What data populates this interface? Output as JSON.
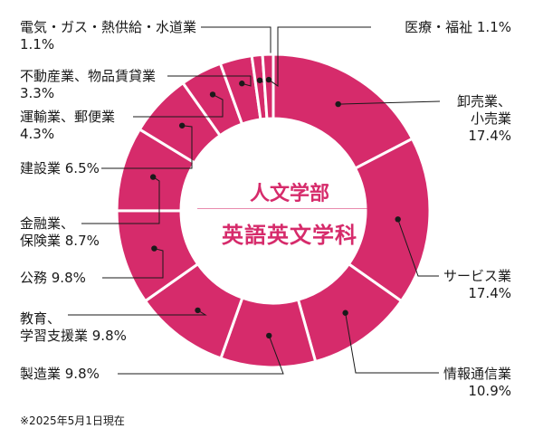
{
  "chart_data": {
    "type": "donut",
    "center_title_line1": "人文学部",
    "center_title_line2": "英語英文学科",
    "footnote": "※2025年5月1日現在",
    "color": "#d62b6b",
    "slices": [
      {
        "id": "s0",
        "lines": [
          "卸売業、",
          "小売業",
          "17.4%"
        ],
        "value": 17.4
      },
      {
        "id": "s1",
        "lines": [
          "サービス業",
          "17.4%"
        ],
        "value": 17.4
      },
      {
        "id": "s2",
        "lines": [
          "情報通信業",
          "10.9%"
        ],
        "value": 10.9
      },
      {
        "id": "s3",
        "lines": [
          "製造業 9.8%"
        ],
        "value": 9.8
      },
      {
        "id": "s4",
        "lines": [
          "教育、",
          "学習支援業 9.8%"
        ],
        "value": 9.8
      },
      {
        "id": "s5",
        "lines": [
          "公務 9.8%"
        ],
        "value": 9.8
      },
      {
        "id": "s6",
        "lines": [
          "金融業、",
          "保険業 8.7%"
        ],
        "value": 8.7
      },
      {
        "id": "s7",
        "lines": [
          "建設業 6.5%"
        ],
        "value": 6.5
      },
      {
        "id": "s8",
        "lines": [
          "運輸業、郵便業",
          "4.3%"
        ],
        "value": 4.3
      },
      {
        "id": "s9",
        "lines": [
          "不動産業、物品賃貸業",
          "3.3%"
        ],
        "value": 3.3
      },
      {
        "id": "s10",
        "lines": [
          "電気・ガス・熱供給・水道業",
          "1.1%"
        ],
        "value": 1.1
      },
      {
        "id": "s11",
        "lines": [
          "医療・福祉 1.1%"
        ],
        "value": 1.1
      }
    ]
  }
}
